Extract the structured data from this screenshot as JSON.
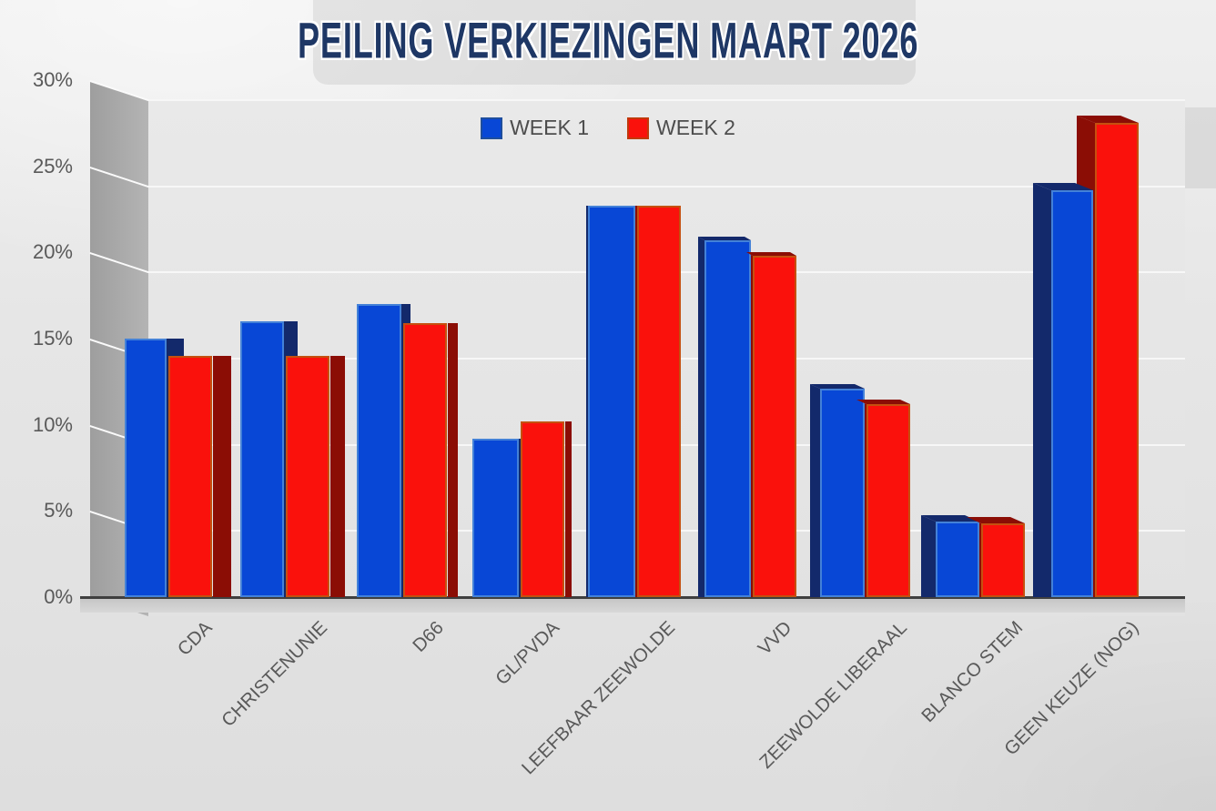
{
  "title": "PEILING VERKIEZINGEN MAART 2026",
  "legend": {
    "week1_label": "WEEK 1",
    "week2_label": "WEEK 2"
  },
  "colors": {
    "week1_front": "#0847d6",
    "week1_side": "#13296b",
    "week1_border": "#4381d8",
    "week2_front": "#fa110c",
    "week2_side": "#8b0d05",
    "week2_border": "#c5500f",
    "title_text": "#1e3765",
    "axis_text": "#595959"
  },
  "chart_data": {
    "type": "bar",
    "style": "3d",
    "title": "PEILING VERKIEZINGEN MAART 2026",
    "categories": [
      "CDA",
      "CHRISTENUNIE",
      "D66",
      "GL/PVDA",
      "LEEFBAAR ZEEWOLDE",
      "VVD",
      "ZEEWOLDE LIBERAAL",
      "BLANCO STEM",
      "GEEN KEUZE (NOG)"
    ],
    "series": [
      {
        "name": "WEEK 1",
        "values": [
          15,
          16,
          17,
          9.2,
          22.7,
          20.7,
          12.1,
          4.4,
          23.6
        ]
      },
      {
        "name": "WEEK 2",
        "values": [
          14,
          14,
          15.9,
          10.2,
          22.7,
          19.8,
          11.2,
          4.3,
          27.5
        ]
      }
    ],
    "xlabel": "",
    "ylabel": "",
    "ylim": [
      0,
      30
    ],
    "y_ticks": [
      "0%",
      "5%",
      "10%",
      "15%",
      "20%",
      "25%",
      "30%"
    ],
    "y_tick_values": [
      0,
      5,
      10,
      15,
      20,
      25,
      30
    ],
    "grid": true,
    "legend_position": "top-center"
  }
}
